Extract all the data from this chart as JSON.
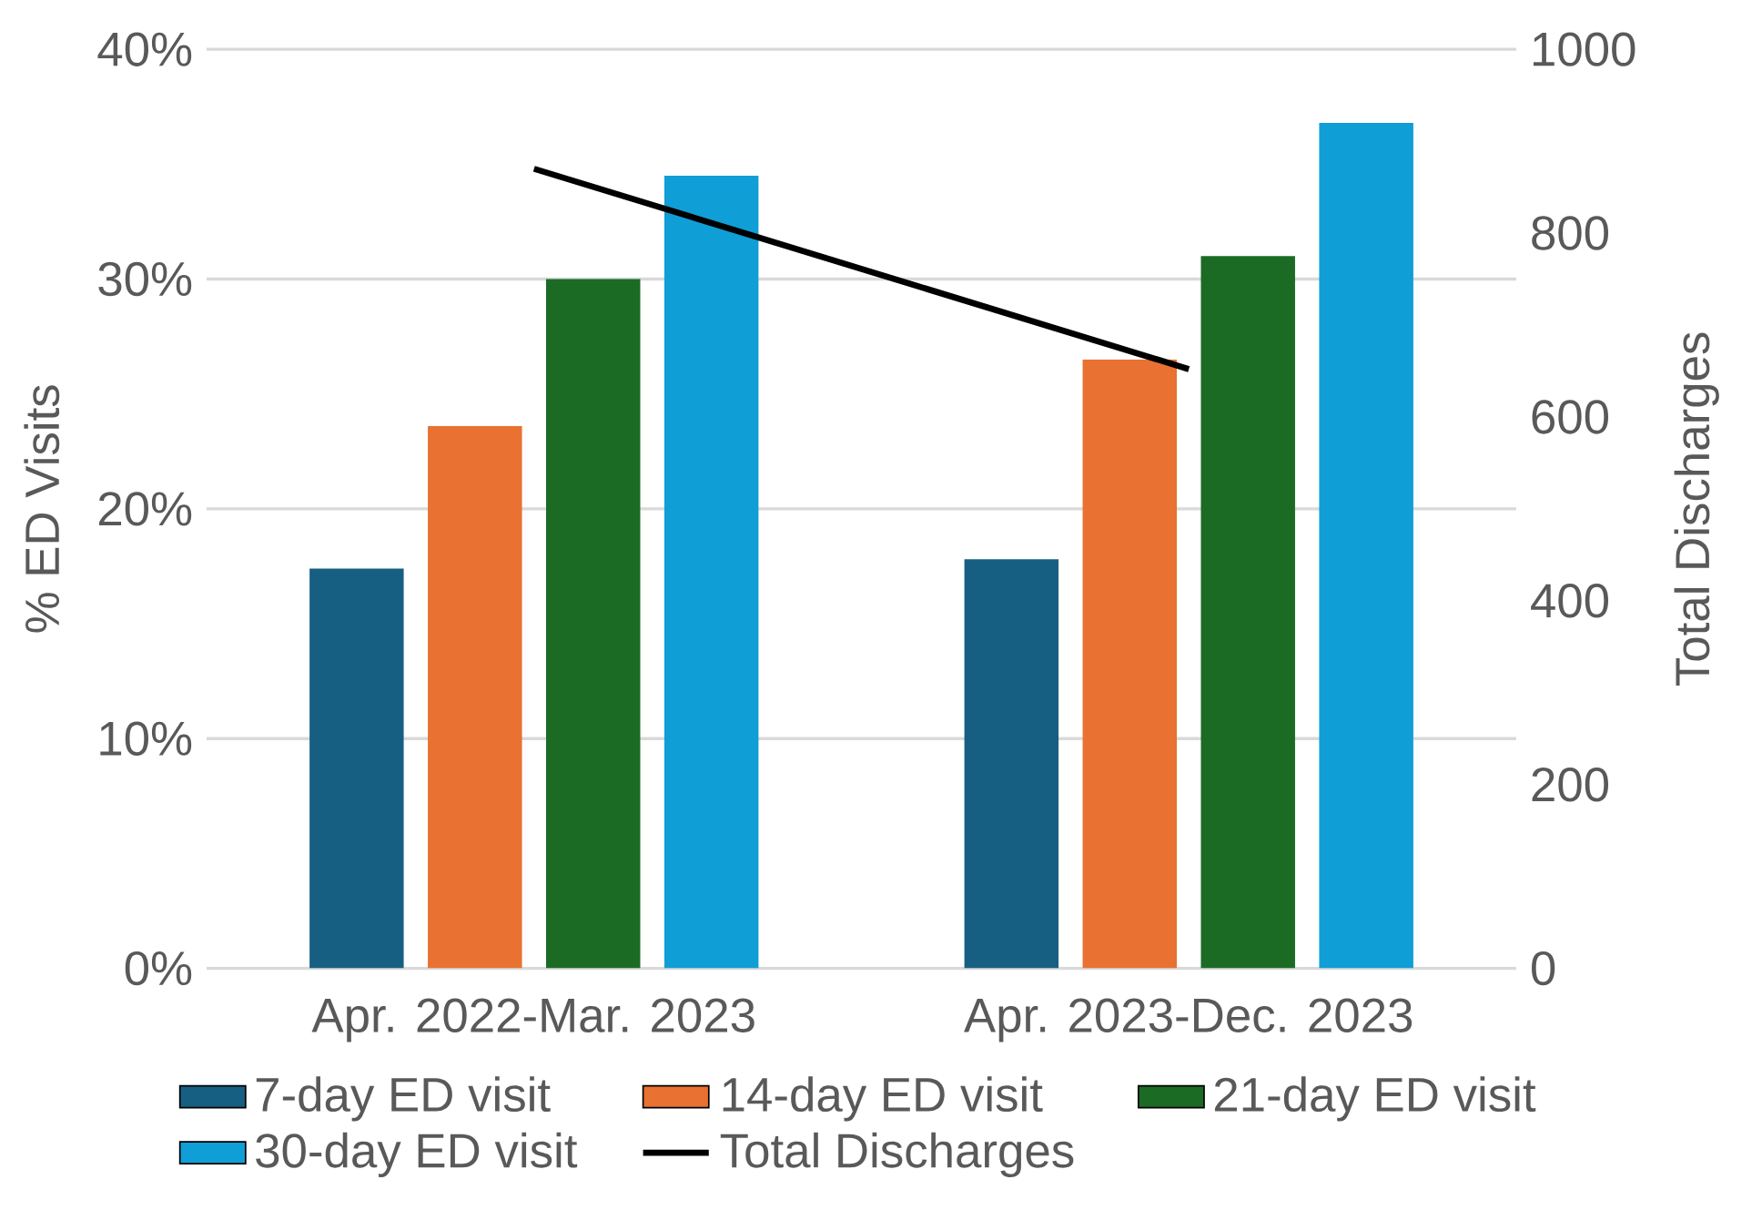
{
  "chart_data": {
    "type": "bar",
    "categories": [
      "Apr. 2022-Mar. 2023",
      "Apr. 2023-Dec. 2023"
    ],
    "series": [
      {
        "name": "7-day ED visit",
        "color": "#175f82",
        "values": [
          17.4,
          17.8
        ]
      },
      {
        "name": "14-day ED visit",
        "color": "#e97132",
        "values": [
          23.6,
          26.5
        ]
      },
      {
        "name": "21-day ED visit",
        "color": "#1b6b24",
        "values": [
          30.0,
          31.0
        ]
      },
      {
        "name": "30-day ED visit",
        "color": "#109ed6",
        "values": [
          34.5,
          36.8
        ]
      },
      {
        "name": "Total Discharges",
        "color": "#000000",
        "type": "line",
        "axis": "y2",
        "values": [
          870,
          652
        ]
      }
    ],
    "ylabel": "% ED Visits",
    "y2label": "Total Discharges",
    "ylim": [
      0,
      40
    ],
    "yticks": [
      {
        "value": 0,
        "label": "0%"
      },
      {
        "value": 10,
        "label": "10%"
      },
      {
        "value": 20,
        "label": "20%"
      },
      {
        "value": 30,
        "label": "30%"
      },
      {
        "value": 40,
        "label": "40%"
      }
    ],
    "y2lim": [
      0,
      1000
    ],
    "y2ticks": [
      0,
      200,
      400,
      600,
      800,
      1000
    ],
    "grid": "y",
    "legend": "bottom",
    "marker": "none"
  }
}
